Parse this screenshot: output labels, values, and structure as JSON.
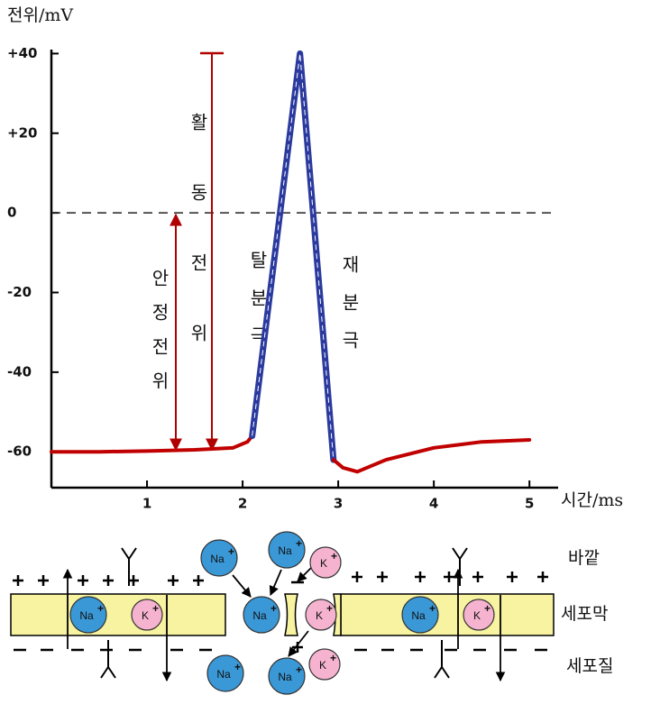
{
  "chart_data": {
    "type": "line",
    "y_label": "전위/mV",
    "x_label": "시간/ms",
    "xlim": [
      0,
      5.3
    ],
    "ylim": [
      -69,
      41
    ],
    "xticks": [
      1,
      2,
      3,
      4,
      5
    ],
    "yticks": [
      {
        "value": 40,
        "label": "+40"
      },
      {
        "value": 20,
        "label": "+20"
      },
      0,
      -20,
      -40,
      -60
    ],
    "series": [
      {
        "color": "#c00000",
        "x": [
          0,
          0.5,
          1,
          1.5,
          1.9,
          2.05,
          2.1
        ],
        "values": [
          -60,
          -60,
          -59.8,
          -59.5,
          -59,
          -57.5,
          -56
        ]
      },
      {
        "color": "#2b3a9e",
        "x": [
          2.1,
          2.6,
          2.95
        ],
        "values": [
          -56,
          40,
          -62
        ]
      },
      {
        "color": "#c00000",
        "x": [
          2.95,
          3.05,
          3.2,
          3.5,
          4,
          4.5,
          5
        ],
        "values": [
          -62,
          -64,
          -65,
          -62,
          -59,
          -57.5,
          -57
        ]
      }
    ],
    "annotations": {
      "action_potential": "활동전위",
      "resting_potential": "안정전위",
      "depolarization": "탈분극",
      "repolarization": "재분극"
    }
  },
  "membrane": {
    "outside": "바깥",
    "membrane": "세포막",
    "cytoplasm": "세포질",
    "na": "Na",
    "k": "K",
    "charge": "+"
  }
}
